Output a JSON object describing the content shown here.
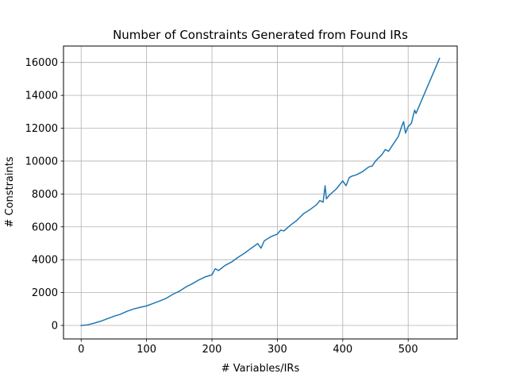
{
  "chart_data": {
    "type": "line",
    "title": "Number of Constraints Generated from Found IRs",
    "xlabel": "# Variables/IRs",
    "ylabel": "# Constraints",
    "xlim": [
      -27,
      575
    ],
    "ylim": [
      -820,
      17000
    ],
    "xticks": [
      0,
      100,
      200,
      300,
      400,
      500
    ],
    "yticks": [
      0,
      2000,
      4000,
      6000,
      8000,
      10000,
      12000,
      14000,
      16000
    ],
    "grid": true,
    "colors": {
      "series": "#1f77b4",
      "grid": "#b0b0b0"
    },
    "series": [
      {
        "x": [
          0,
          10,
          20,
          30,
          40,
          50,
          60,
          70,
          80,
          90,
          100,
          110,
          120,
          130,
          140,
          150,
          160,
          170,
          180,
          190,
          200,
          205,
          210,
          220,
          230,
          240,
          250,
          260,
          270,
          275,
          280,
          290,
          300,
          305,
          310,
          320,
          330,
          340,
          350,
          360,
          365,
          370,
          373,
          375,
          380,
          390,
          400,
          405,
          410,
          415,
          420,
          430,
          440,
          445,
          450,
          455,
          460,
          465,
          470,
          475,
          480,
          485,
          490,
          493,
          496,
          500,
          505,
          508,
          510,
          512,
          548
        ],
        "y": [
          0,
          40,
          140,
          260,
          410,
          560,
          680,
          860,
          1000,
          1100,
          1190,
          1340,
          1490,
          1650,
          1890,
          2080,
          2340,
          2540,
          2770,
          2960,
          3080,
          3450,
          3340,
          3650,
          3860,
          4150,
          4400,
          4700,
          4980,
          4700,
          5150,
          5400,
          5560,
          5800,
          5750,
          6100,
          6400,
          6800,
          7050,
          7350,
          7600,
          7500,
          8500,
          7700,
          7950,
          8300,
          8800,
          8500,
          9000,
          9100,
          9150,
          9350,
          9650,
          9700,
          10000,
          10200,
          10400,
          10700,
          10600,
          10900,
          11200,
          11500,
          12100,
          12400,
          11700,
          12100,
          12300,
          12800,
          13100,
          12900,
          16250
        ]
      }
    ]
  }
}
